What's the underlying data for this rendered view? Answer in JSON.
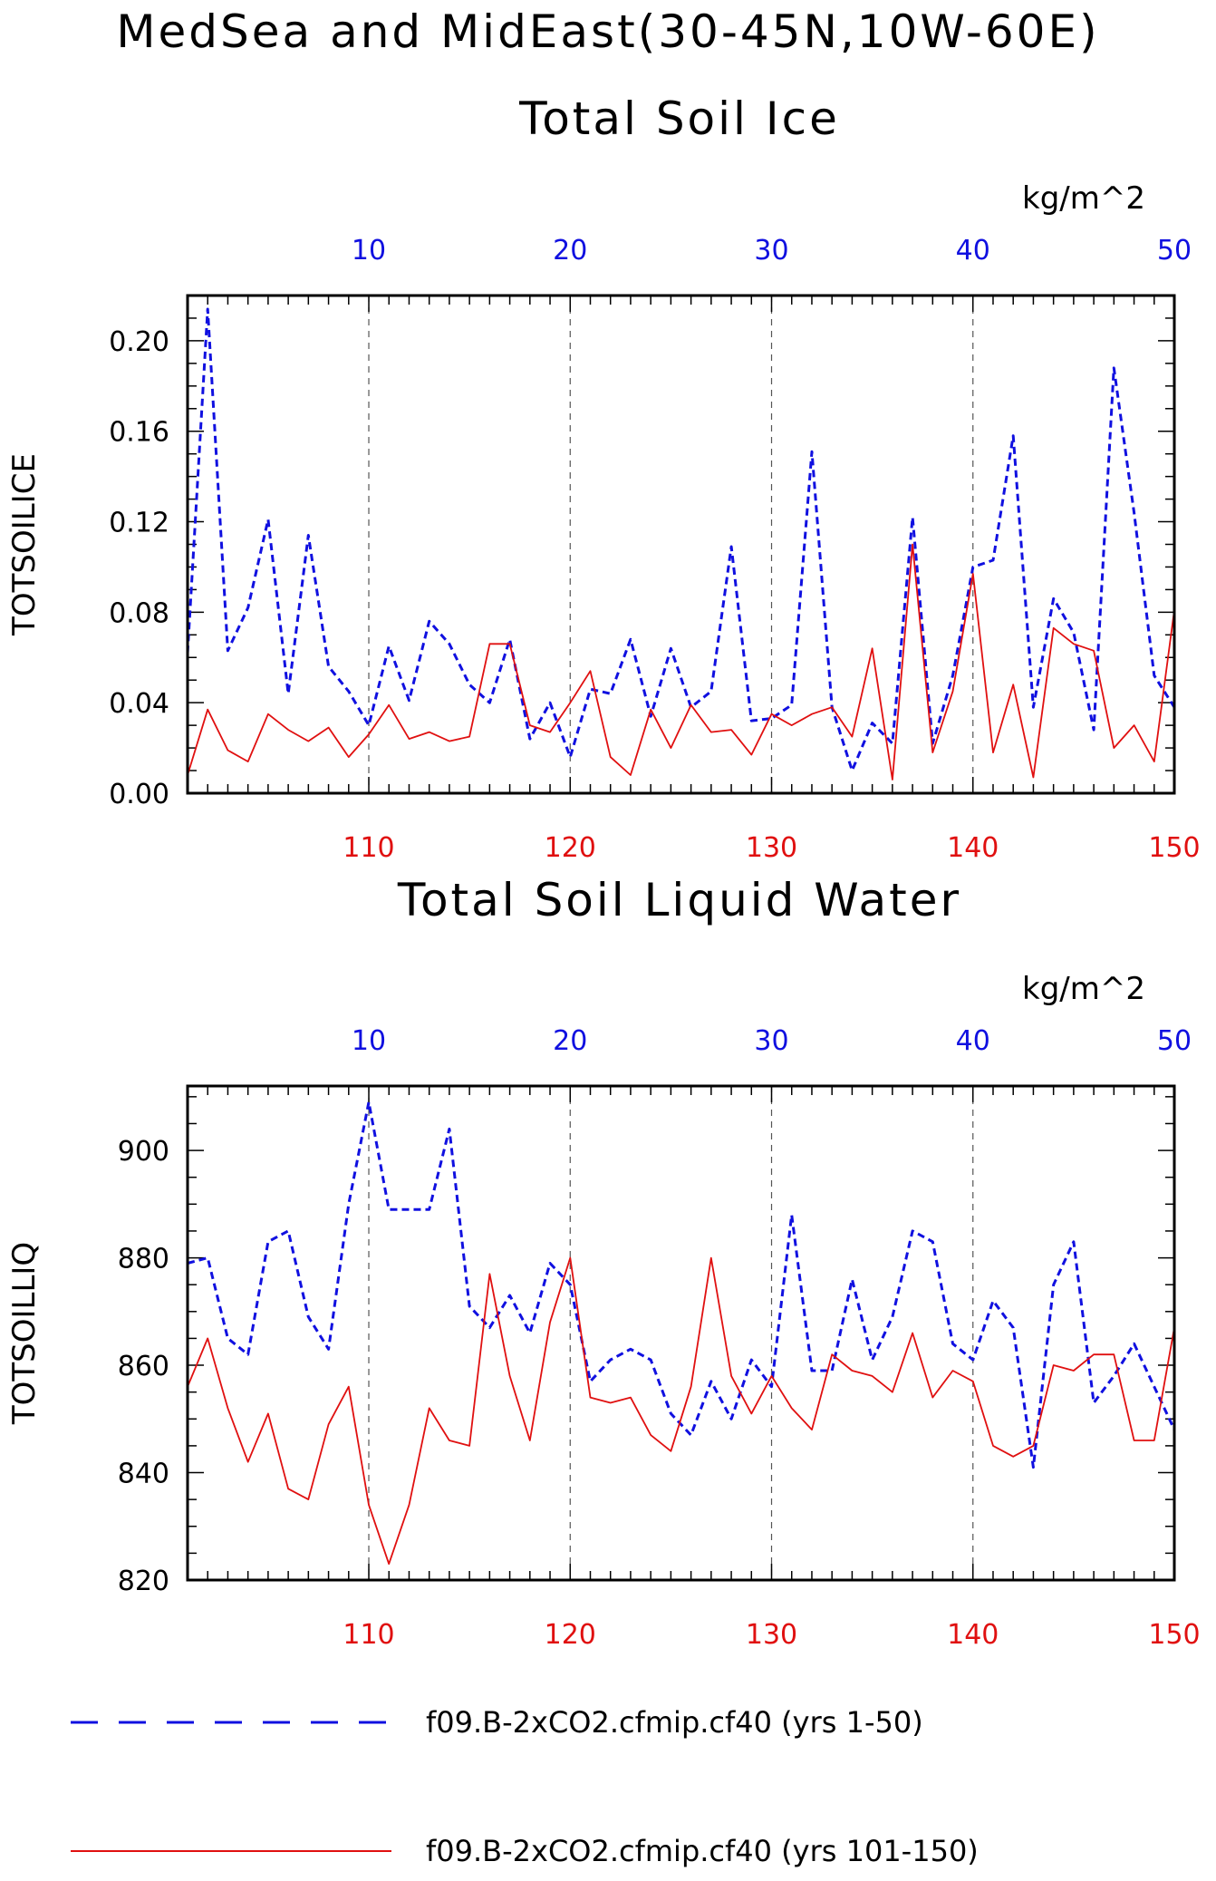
{
  "figure_title": "MedSea and MidEast(30-45N,10W-60E)",
  "colors": {
    "blue": "#1010e0",
    "red": "#e01010",
    "axis": "#000000",
    "grid": "#555555"
  },
  "legend": [
    {
      "label": "f09.B-2xCO2.cfmip.cf40 (yrs 1-50)",
      "color": "#1010e0",
      "style": "dashed"
    },
    {
      "label": "f09.B-2xCO2.cfmip.cf40 (yrs 101-150)",
      "color": "#e01010",
      "style": "solid"
    }
  ],
  "chart_data": [
    {
      "type": "line",
      "title": "Total Soil Ice",
      "units": "kg/m^2",
      "ylabel": "TOTSOILICE",
      "ylim": [
        0,
        0.22
      ],
      "yticks": [
        0.0,
        0.04,
        0.08,
        0.12,
        0.16,
        0.2
      ],
      "ytick_labels": [
        "0.00",
        "0.04",
        "0.08",
        "0.12",
        "0.16",
        "0.20"
      ],
      "top_axis": {
        "range": [
          1,
          50
        ],
        "ticks": [
          10,
          20,
          30,
          40,
          50
        ],
        "color": "#1010e0"
      },
      "bottom_axis": {
        "range": [
          101,
          150
        ],
        "ticks": [
          110,
          120,
          130,
          140,
          150
        ],
        "color": "#e01010"
      },
      "grid_x": [
        10,
        20,
        30,
        40
      ],
      "series": [
        {
          "name": "f09.B-2xCO2.cfmip.cf40 (yrs 1-50)",
          "axis": "top",
          "color": "#1010e0",
          "style": "dashed",
          "x": [
            1,
            2,
            3,
            4,
            5,
            6,
            7,
            8,
            9,
            10,
            11,
            12,
            13,
            14,
            15,
            16,
            17,
            18,
            19,
            20,
            21,
            22,
            23,
            24,
            25,
            26,
            27,
            28,
            29,
            30,
            31,
            32,
            33,
            34,
            35,
            36,
            37,
            38,
            39,
            40,
            41,
            42,
            43,
            44,
            45,
            46,
            47,
            48,
            49,
            50
          ],
          "values": [
            0.062,
            0.214,
            0.063,
            0.082,
            0.121,
            0.044,
            0.114,
            0.056,
            0.045,
            0.03,
            0.065,
            0.041,
            0.076,
            0.066,
            0.048,
            0.04,
            0.068,
            0.024,
            0.04,
            0.016,
            0.046,
            0.044,
            0.068,
            0.034,
            0.064,
            0.038,
            0.045,
            0.109,
            0.032,
            0.033,
            0.039,
            0.151,
            0.038,
            0.01,
            0.031,
            0.022,
            0.122,
            0.022,
            0.052,
            0.1,
            0.103,
            0.158,
            0.038,
            0.086,
            0.071,
            0.028,
            0.188,
            0.124,
            0.052,
            0.038
          ]
        },
        {
          "name": "f09.B-2xCO2.cfmip.cf40 (yrs 101-150)",
          "axis": "bottom",
          "color": "#e01010",
          "style": "solid",
          "x": [
            101,
            102,
            103,
            104,
            105,
            106,
            107,
            108,
            109,
            110,
            111,
            112,
            113,
            114,
            115,
            116,
            117,
            118,
            119,
            120,
            121,
            122,
            123,
            124,
            125,
            126,
            127,
            128,
            129,
            130,
            131,
            132,
            133,
            134,
            135,
            136,
            137,
            138,
            139,
            140,
            141,
            142,
            143,
            144,
            145,
            146,
            147,
            148,
            149,
            150
          ],
          "values": [
            0.008,
            0.037,
            0.019,
            0.014,
            0.035,
            0.028,
            0.023,
            0.029,
            0.016,
            0.026,
            0.039,
            0.024,
            0.027,
            0.023,
            0.025,
            0.066,
            0.066,
            0.03,
            0.027,
            0.04,
            0.054,
            0.016,
            0.008,
            0.037,
            0.02,
            0.039,
            0.027,
            0.028,
            0.017,
            0.035,
            0.03,
            0.035,
            0.038,
            0.025,
            0.064,
            0.006,
            0.11,
            0.018,
            0.045,
            0.097,
            0.018,
            0.048,
            0.007,
            0.073,
            0.066,
            0.063,
            0.02,
            0.03,
            0.014,
            0.081
          ]
        }
      ]
    },
    {
      "type": "line",
      "title": "Total Soil Liquid Water",
      "units": "kg/m^2",
      "ylabel": "TOTSOILLIQ",
      "ylim": [
        820,
        912
      ],
      "yticks": [
        820,
        840,
        860,
        880,
        900
      ],
      "ytick_labels": [
        "820",
        "840",
        "860",
        "880",
        "900"
      ],
      "top_axis": {
        "range": [
          1,
          50
        ],
        "ticks": [
          10,
          20,
          30,
          40,
          50
        ],
        "color": "#1010e0"
      },
      "bottom_axis": {
        "range": [
          101,
          150
        ],
        "ticks": [
          110,
          120,
          130,
          140,
          150
        ],
        "color": "#e01010"
      },
      "grid_x": [
        10,
        20,
        30,
        40
      ],
      "series": [
        {
          "name": "f09.B-2xCO2.cfmip.cf40 (yrs 1-50)",
          "axis": "top",
          "color": "#1010e0",
          "style": "dashed",
          "x": [
            1,
            2,
            3,
            4,
            5,
            6,
            7,
            8,
            9,
            10,
            11,
            12,
            13,
            14,
            15,
            16,
            17,
            18,
            19,
            20,
            21,
            22,
            23,
            24,
            25,
            26,
            27,
            28,
            29,
            30,
            31,
            32,
            33,
            34,
            35,
            36,
            37,
            38,
            39,
            40,
            41,
            42,
            43,
            44,
            45,
            46,
            47,
            48,
            49,
            50
          ],
          "values": [
            879,
            880,
            865,
            862,
            883,
            885,
            869,
            863,
            890,
            909,
            889,
            889,
            889,
            904,
            871,
            867,
            873,
            866,
            879,
            875,
            857,
            861,
            863,
            861,
            851,
            847,
            857,
            850,
            861,
            856,
            888,
            859,
            859,
            876,
            861,
            869,
            885,
            883,
            864,
            861,
            872,
            867,
            841,
            875,
            883,
            853,
            858,
            864,
            856,
            848
          ]
        },
        {
          "name": "f09.B-2xCO2.cfmip.cf40 (yrs 101-150)",
          "axis": "bottom",
          "color": "#e01010",
          "style": "solid",
          "x": [
            101,
            102,
            103,
            104,
            105,
            106,
            107,
            108,
            109,
            110,
            111,
            112,
            113,
            114,
            115,
            116,
            117,
            118,
            119,
            120,
            121,
            122,
            123,
            124,
            125,
            126,
            127,
            128,
            129,
            130,
            131,
            132,
            133,
            134,
            135,
            136,
            137,
            138,
            139,
            140,
            141,
            142,
            143,
            144,
            145,
            146,
            147,
            148,
            149,
            150
          ],
          "values": [
            856,
            865,
            852,
            842,
            851,
            837,
            835,
            849,
            856,
            834,
            823,
            834,
            852,
            846,
            845,
            877,
            858,
            846,
            868,
            880,
            854,
            853,
            854,
            847,
            844,
            856,
            880,
            858,
            851,
            858,
            852,
            848,
            862,
            859,
            858,
            855,
            866,
            854,
            859,
            857,
            845,
            843,
            845,
            860,
            859,
            862,
            862,
            846,
            846,
            867
          ]
        }
      ]
    }
  ]
}
